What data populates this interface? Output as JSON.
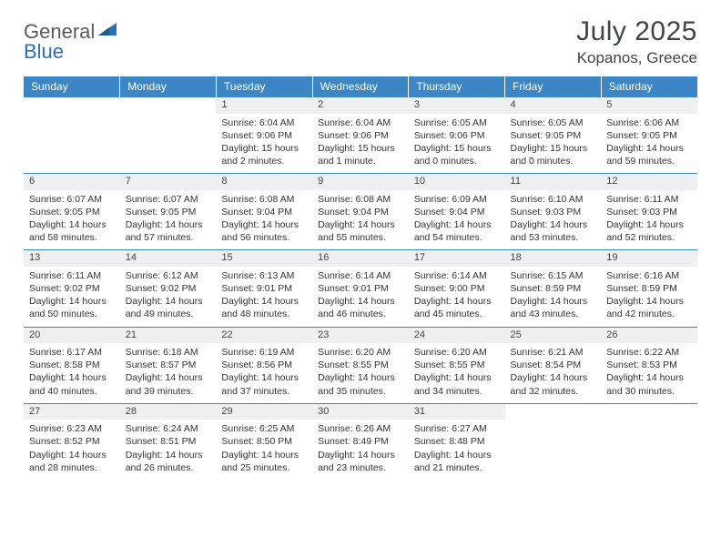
{
  "brand": {
    "part1": "General",
    "part2": "Blue"
  },
  "title": "July 2025",
  "location": "Kopanos, Greece",
  "colors": {
    "header_bg": "#3d86c6",
    "header_text": "#ffffff",
    "daynum_bg": "#eef0f1",
    "border": "#3d86c6",
    "body_text": "#333333",
    "title_text": "#404548",
    "logo_gray": "#555a60",
    "logo_blue": "#2a6fb5",
    "page_bg": "#ffffff"
  },
  "typography": {
    "title_fontsize": 30,
    "location_fontsize": 17,
    "dayheader_fontsize": 12,
    "daynum_fontsize": 11,
    "cell_fontsize": 10.5
  },
  "day_headers": [
    "Sunday",
    "Monday",
    "Tuesday",
    "Wednesday",
    "Thursday",
    "Friday",
    "Saturday"
  ],
  "weeks": [
    [
      null,
      null,
      {
        "num": "1",
        "sunrise": "Sunrise: 6:04 AM",
        "sunset": "Sunset: 9:06 PM",
        "daylight": "Daylight: 15 hours and 2 minutes."
      },
      {
        "num": "2",
        "sunrise": "Sunrise: 6:04 AM",
        "sunset": "Sunset: 9:06 PM",
        "daylight": "Daylight: 15 hours and 1 minute."
      },
      {
        "num": "3",
        "sunrise": "Sunrise: 6:05 AM",
        "sunset": "Sunset: 9:06 PM",
        "daylight": "Daylight: 15 hours and 0 minutes."
      },
      {
        "num": "4",
        "sunrise": "Sunrise: 6:05 AM",
        "sunset": "Sunset: 9:05 PM",
        "daylight": "Daylight: 15 hours and 0 minutes."
      },
      {
        "num": "5",
        "sunrise": "Sunrise: 6:06 AM",
        "sunset": "Sunset: 9:05 PM",
        "daylight": "Daylight: 14 hours and 59 minutes."
      }
    ],
    [
      {
        "num": "6",
        "sunrise": "Sunrise: 6:07 AM",
        "sunset": "Sunset: 9:05 PM",
        "daylight": "Daylight: 14 hours and 58 minutes."
      },
      {
        "num": "7",
        "sunrise": "Sunrise: 6:07 AM",
        "sunset": "Sunset: 9:05 PM",
        "daylight": "Daylight: 14 hours and 57 minutes."
      },
      {
        "num": "8",
        "sunrise": "Sunrise: 6:08 AM",
        "sunset": "Sunset: 9:04 PM",
        "daylight": "Daylight: 14 hours and 56 minutes."
      },
      {
        "num": "9",
        "sunrise": "Sunrise: 6:08 AM",
        "sunset": "Sunset: 9:04 PM",
        "daylight": "Daylight: 14 hours and 55 minutes."
      },
      {
        "num": "10",
        "sunrise": "Sunrise: 6:09 AM",
        "sunset": "Sunset: 9:04 PM",
        "daylight": "Daylight: 14 hours and 54 minutes."
      },
      {
        "num": "11",
        "sunrise": "Sunrise: 6:10 AM",
        "sunset": "Sunset: 9:03 PM",
        "daylight": "Daylight: 14 hours and 53 minutes."
      },
      {
        "num": "12",
        "sunrise": "Sunrise: 6:11 AM",
        "sunset": "Sunset: 9:03 PM",
        "daylight": "Daylight: 14 hours and 52 minutes."
      }
    ],
    [
      {
        "num": "13",
        "sunrise": "Sunrise: 6:11 AM",
        "sunset": "Sunset: 9:02 PM",
        "daylight": "Daylight: 14 hours and 50 minutes."
      },
      {
        "num": "14",
        "sunrise": "Sunrise: 6:12 AM",
        "sunset": "Sunset: 9:02 PM",
        "daylight": "Daylight: 14 hours and 49 minutes."
      },
      {
        "num": "15",
        "sunrise": "Sunrise: 6:13 AM",
        "sunset": "Sunset: 9:01 PM",
        "daylight": "Daylight: 14 hours and 48 minutes."
      },
      {
        "num": "16",
        "sunrise": "Sunrise: 6:14 AM",
        "sunset": "Sunset: 9:01 PM",
        "daylight": "Daylight: 14 hours and 46 minutes."
      },
      {
        "num": "17",
        "sunrise": "Sunrise: 6:14 AM",
        "sunset": "Sunset: 9:00 PM",
        "daylight": "Daylight: 14 hours and 45 minutes."
      },
      {
        "num": "18",
        "sunrise": "Sunrise: 6:15 AM",
        "sunset": "Sunset: 8:59 PM",
        "daylight": "Daylight: 14 hours and 43 minutes."
      },
      {
        "num": "19",
        "sunrise": "Sunrise: 6:16 AM",
        "sunset": "Sunset: 8:59 PM",
        "daylight": "Daylight: 14 hours and 42 minutes."
      }
    ],
    [
      {
        "num": "20",
        "sunrise": "Sunrise: 6:17 AM",
        "sunset": "Sunset: 8:58 PM",
        "daylight": "Daylight: 14 hours and 40 minutes."
      },
      {
        "num": "21",
        "sunrise": "Sunrise: 6:18 AM",
        "sunset": "Sunset: 8:57 PM",
        "daylight": "Daylight: 14 hours and 39 minutes."
      },
      {
        "num": "22",
        "sunrise": "Sunrise: 6:19 AM",
        "sunset": "Sunset: 8:56 PM",
        "daylight": "Daylight: 14 hours and 37 minutes."
      },
      {
        "num": "23",
        "sunrise": "Sunrise: 6:20 AM",
        "sunset": "Sunset: 8:55 PM",
        "daylight": "Daylight: 14 hours and 35 minutes."
      },
      {
        "num": "24",
        "sunrise": "Sunrise: 6:20 AM",
        "sunset": "Sunset: 8:55 PM",
        "daylight": "Daylight: 14 hours and 34 minutes."
      },
      {
        "num": "25",
        "sunrise": "Sunrise: 6:21 AM",
        "sunset": "Sunset: 8:54 PM",
        "daylight": "Daylight: 14 hours and 32 minutes."
      },
      {
        "num": "26",
        "sunrise": "Sunrise: 6:22 AM",
        "sunset": "Sunset: 8:53 PM",
        "daylight": "Daylight: 14 hours and 30 minutes."
      }
    ],
    [
      {
        "num": "27",
        "sunrise": "Sunrise: 6:23 AM",
        "sunset": "Sunset: 8:52 PM",
        "daylight": "Daylight: 14 hours and 28 minutes."
      },
      {
        "num": "28",
        "sunrise": "Sunrise: 6:24 AM",
        "sunset": "Sunset: 8:51 PM",
        "daylight": "Daylight: 14 hours and 26 minutes."
      },
      {
        "num": "29",
        "sunrise": "Sunrise: 6:25 AM",
        "sunset": "Sunset: 8:50 PM",
        "daylight": "Daylight: 14 hours and 25 minutes."
      },
      {
        "num": "30",
        "sunrise": "Sunrise: 6:26 AM",
        "sunset": "Sunset: 8:49 PM",
        "daylight": "Daylight: 14 hours and 23 minutes."
      },
      {
        "num": "31",
        "sunrise": "Sunrise: 6:27 AM",
        "sunset": "Sunset: 8:48 PM",
        "daylight": "Daylight: 14 hours and 21 minutes."
      },
      null,
      null
    ]
  ]
}
